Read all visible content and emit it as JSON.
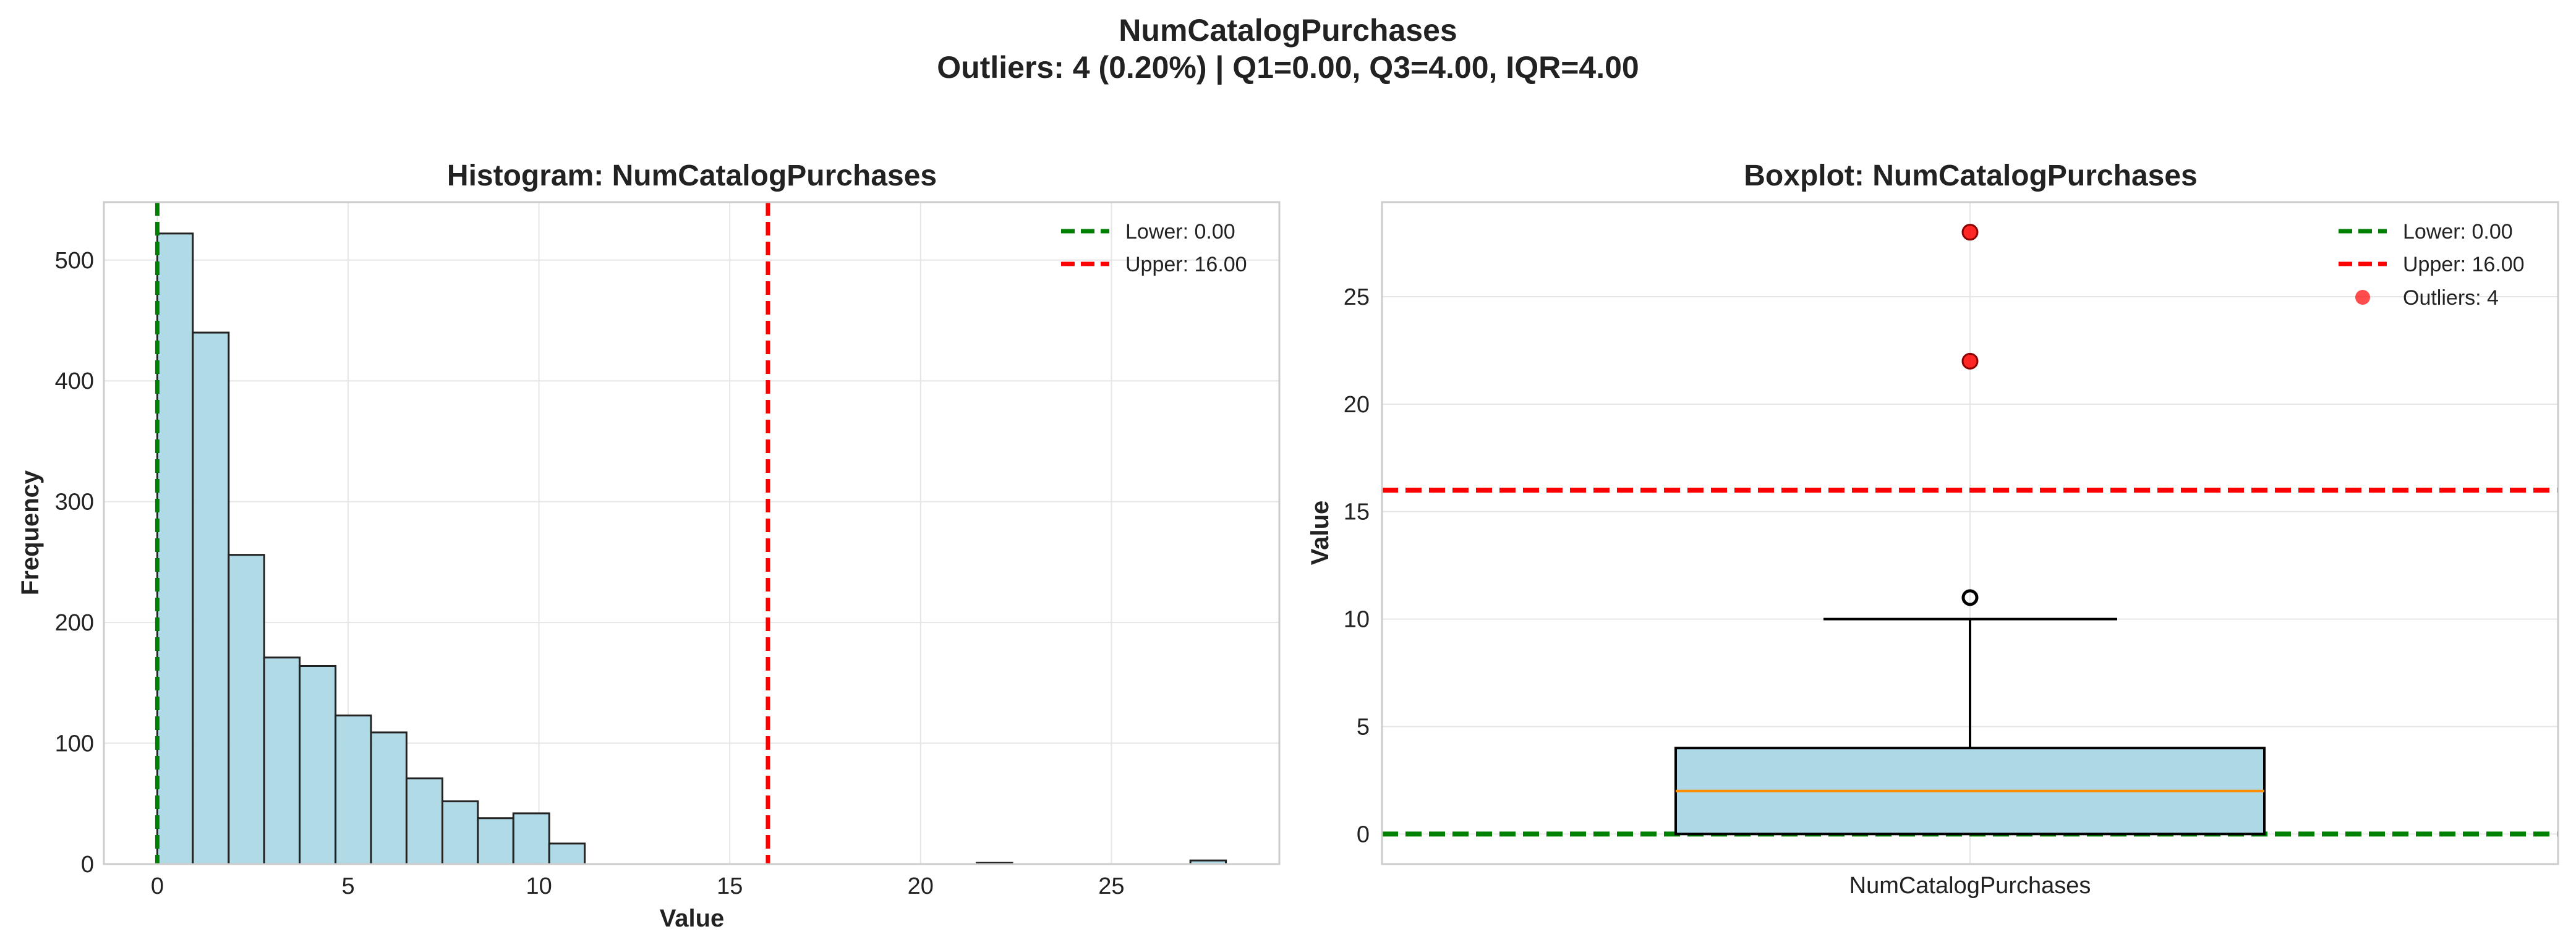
{
  "figure": {
    "title_line1": "NumCatalogPurchases",
    "title_line2": "Outliers: 4 (0.20%) | Q1=0.00, Q3=4.00, IQR=4.00"
  },
  "colors": {
    "bar_fill": "#add8e6",
    "bar_edge": "#222222",
    "lower_line": "#008000",
    "upper_line": "#ff0000",
    "median": "#ff8c00",
    "outlier": "#ff0000"
  },
  "chart_data": [
    {
      "type": "bar",
      "subtype": "histogram",
      "title": "Histogram: NumCatalogPurchases",
      "xlabel": "Value",
      "ylabel": "Frequency",
      "xlim": [
        -1.4,
        29.4
      ],
      "ylim": [
        0,
        548
      ],
      "xticks": [
        0,
        5,
        10,
        15,
        20,
        25
      ],
      "yticks": [
        0,
        100,
        200,
        300,
        400,
        500
      ],
      "grid": true,
      "legend_position": "top-right",
      "bins": [
        {
          "x0": 0.0,
          "x1": 0.93,
          "count": 522
        },
        {
          "x0": 0.93,
          "x1": 1.87,
          "count": 440
        },
        {
          "x0": 1.87,
          "x1": 2.8,
          "count": 256
        },
        {
          "x0": 2.8,
          "x1": 3.73,
          "count": 171
        },
        {
          "x0": 3.73,
          "x1": 4.67,
          "count": 164
        },
        {
          "x0": 4.67,
          "x1": 5.6,
          "count": 123
        },
        {
          "x0": 5.6,
          "x1": 6.53,
          "count": 109
        },
        {
          "x0": 6.53,
          "x1": 7.47,
          "count": 71
        },
        {
          "x0": 7.47,
          "x1": 8.4,
          "count": 52
        },
        {
          "x0": 8.4,
          "x1": 9.33,
          "count": 38
        },
        {
          "x0": 9.33,
          "x1": 10.27,
          "count": 42
        },
        {
          "x0": 10.27,
          "x1": 11.2,
          "count": 17
        },
        {
          "x0": 21.47,
          "x1": 22.4,
          "count": 1
        },
        {
          "x0": 27.07,
          "x1": 28.0,
          "count": 3
        }
      ],
      "reference_lines": [
        {
          "name": "Lower: 0.00",
          "value": 0.0,
          "color": "#008000"
        },
        {
          "name": "Upper: 16.00",
          "value": 16.0,
          "color": "#ff0000"
        }
      ]
    },
    {
      "type": "boxplot",
      "title": "Boxplot: NumCatalogPurchases",
      "ylabel": "Value",
      "category": "NumCatalogPurchases",
      "ylim": [
        -1.4,
        29.4
      ],
      "yticks": [
        0,
        5,
        10,
        15,
        20,
        25
      ],
      "grid": true,
      "legend_position": "top-right",
      "q1": 0.0,
      "median": 2.0,
      "q3": 4.0,
      "whisker_low": 0.0,
      "whisker_high": 10.0,
      "fliers": [
        11
      ],
      "outliers": [
        22,
        28
      ],
      "reference_lines": [
        {
          "name": "Lower: 0.00",
          "value": 0.0,
          "color": "#008000"
        },
        {
          "name": "Upper: 16.00",
          "value": 16.0,
          "color": "#ff0000"
        }
      ],
      "outlier_legend": "Outliers: 4"
    }
  ]
}
